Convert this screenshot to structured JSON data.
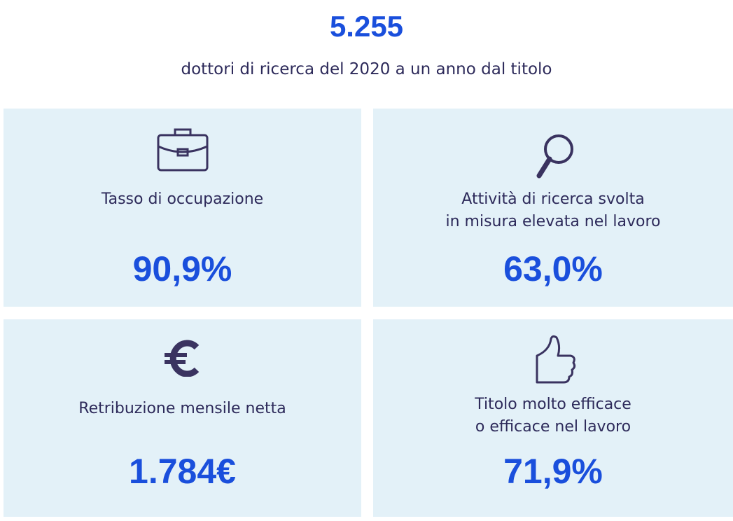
{
  "header": {
    "value": "5.255",
    "subtitle": "dottori di ricerca del 2020 a un anno dal titolo"
  },
  "cards": [
    {
      "label": [
        "Tasso di occupazione"
      ],
      "value": "90,9%"
    },
    {
      "label": [
        "Attività di ricerca svolta",
        "in misura elevata nel lavoro"
      ],
      "value": "63,0%"
    },
    {
      "label": [
        "Retribuzione mensile netta"
      ],
      "value": "1.784€"
    },
    {
      "label": [
        "Titolo molto efficace",
        "o efficace nel lavoro"
      ],
      "value": "71,9%"
    }
  ]
}
